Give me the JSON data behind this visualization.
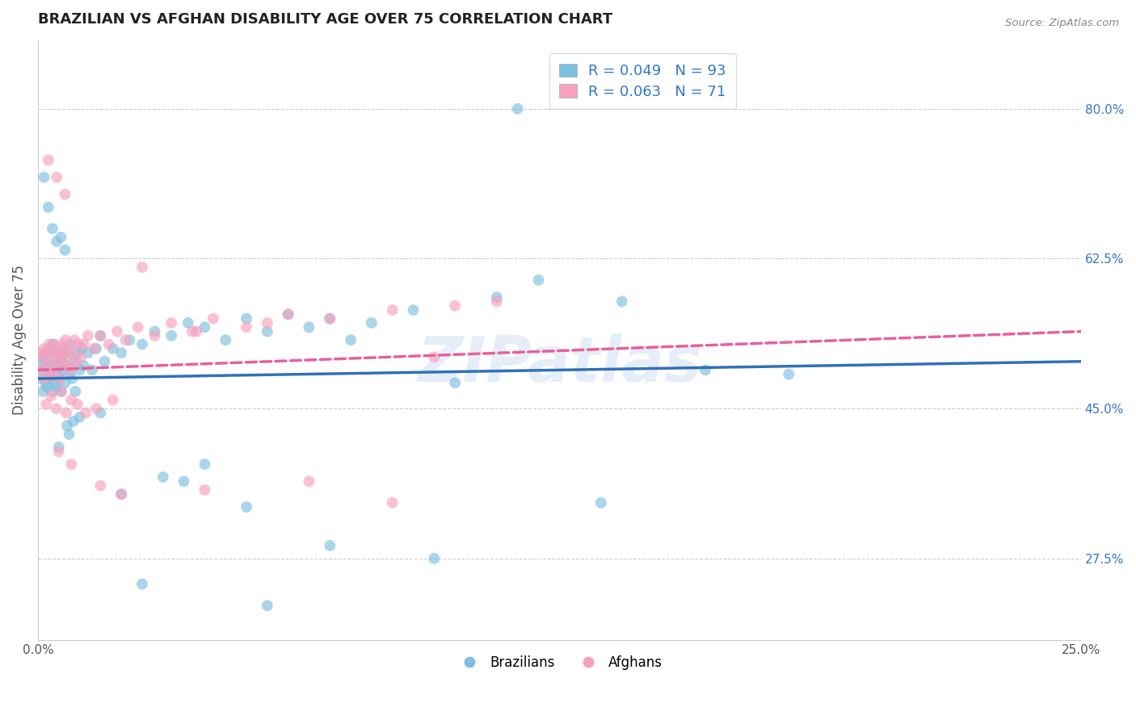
{
  "title": "BRAZILIAN VS AFGHAN DISABILITY AGE OVER 75 CORRELATION CHART",
  "source_text": "Source: ZipAtlas.com",
  "ylabel": "Disability Age Over 75",
  "xlim": [
    0.0,
    25.0
  ],
  "ylim": [
    18.0,
    88.0
  ],
  "ytick_positions": [
    27.5,
    45.0,
    62.5,
    80.0
  ],
  "ytick_labels": [
    "27.5%",
    "45.0%",
    "62.5%",
    "80.0%"
  ],
  "brazilian_R": 0.049,
  "brazilian_N": 93,
  "afghan_R": 0.063,
  "afghan_N": 71,
  "blue_color": "#7fbfdf",
  "pink_color": "#f8a0bc",
  "blue_line_color": "#3070b8",
  "pink_line_color": "#e8609a",
  "legend_text_color": "#3377cc",
  "watermark": "ZIPatlas",
  "watermark_color": "#aac8e8",
  "background_color": "#ffffff",
  "grid_color": "#cccccc",
  "title_color": "#222222",
  "brazil_x": [
    0.05,
    0.08,
    0.1,
    0.12,
    0.14,
    0.16,
    0.18,
    0.2,
    0.22,
    0.24,
    0.26,
    0.28,
    0.3,
    0.32,
    0.34,
    0.36,
    0.38,
    0.4,
    0.42,
    0.44,
    0.46,
    0.48,
    0.5,
    0.52,
    0.54,
    0.56,
    0.58,
    0.6,
    0.62,
    0.65,
    0.68,
    0.72,
    0.75,
    0.78,
    0.82,
    0.86,
    0.9,
    0.95,
    1.0,
    1.05,
    1.1,
    1.2,
    1.3,
    1.4,
    1.5,
    1.6,
    1.8,
    2.0,
    2.2,
    2.5,
    2.8,
    3.2,
    3.6,
    4.0,
    4.5,
    5.0,
    5.5,
    6.0,
    6.5,
    7.0,
    7.5,
    8.0,
    9.0,
    10.0,
    11.0,
    12.0,
    14.0,
    16.0,
    18.0,
    0.15,
    0.25,
    0.35,
    0.45,
    0.55,
    0.65,
    0.75,
    0.85,
    1.0,
    1.5,
    2.0,
    3.0,
    4.0,
    5.0,
    7.0,
    9.5,
    11.5,
    13.5,
    0.5,
    0.7,
    2.5,
    3.5,
    5.5
  ],
  "brazil_y": [
    50.0,
    48.5,
    51.0,
    47.0,
    49.5,
    51.5,
    48.0,
    50.5,
    47.5,
    49.0,
    52.0,
    48.5,
    50.0,
    51.5,
    47.0,
    49.5,
    52.5,
    48.0,
    50.0,
    51.0,
    47.5,
    49.0,
    51.5,
    48.5,
    50.5,
    47.0,
    51.0,
    49.5,
    52.0,
    48.0,
    50.0,
    51.5,
    49.0,
    52.5,
    48.5,
    50.5,
    47.0,
    51.5,
    49.5,
    52.0,
    50.0,
    51.5,
    49.5,
    52.0,
    53.5,
    50.5,
    52.0,
    51.5,
    53.0,
    52.5,
    54.0,
    53.5,
    55.0,
    54.5,
    53.0,
    55.5,
    54.0,
    56.0,
    54.5,
    55.5,
    53.0,
    55.0,
    56.5,
    48.0,
    58.0,
    60.0,
    57.5,
    49.5,
    49.0,
    72.0,
    68.5,
    66.0,
    64.5,
    65.0,
    63.5,
    42.0,
    43.5,
    44.0,
    44.5,
    35.0,
    37.0,
    38.5,
    33.5,
    29.0,
    27.5,
    80.0,
    34.0,
    40.5,
    43.0,
    24.5,
    36.5,
    22.0
  ],
  "afghan_x": [
    0.06,
    0.09,
    0.12,
    0.15,
    0.18,
    0.21,
    0.24,
    0.27,
    0.3,
    0.33,
    0.36,
    0.39,
    0.42,
    0.45,
    0.48,
    0.51,
    0.54,
    0.57,
    0.6,
    0.63,
    0.66,
    0.7,
    0.74,
    0.78,
    0.82,
    0.87,
    0.92,
    0.97,
    1.03,
    1.1,
    1.2,
    1.35,
    1.5,
    1.7,
    1.9,
    2.1,
    2.4,
    2.8,
    3.2,
    3.7,
    4.2,
    5.0,
    6.0,
    7.0,
    8.5,
    10.0,
    0.2,
    0.32,
    0.44,
    0.56,
    0.68,
    0.8,
    0.95,
    1.15,
    1.4,
    1.8,
    0.25,
    0.45,
    0.65,
    2.5,
    3.8,
    5.5,
    9.5,
    11.0,
    0.5,
    0.8,
    1.5,
    2.0,
    4.0,
    8.5,
    6.5
  ],
  "afghan_y": [
    51.5,
    49.5,
    51.0,
    52.0,
    48.5,
    51.5,
    50.0,
    52.5,
    49.0,
    51.0,
    52.5,
    49.5,
    51.5,
    50.5,
    52.0,
    48.5,
    51.0,
    52.5,
    50.0,
    51.5,
    53.0,
    50.5,
    52.0,
    49.5,
    51.5,
    53.0,
    50.5,
    52.5,
    51.0,
    52.5,
    53.5,
    52.0,
    53.5,
    52.5,
    54.0,
    53.0,
    54.5,
    53.5,
    55.0,
    54.0,
    55.5,
    54.5,
    56.0,
    55.5,
    56.5,
    57.0,
    45.5,
    46.5,
    45.0,
    47.0,
    44.5,
    46.0,
    45.5,
    44.5,
    45.0,
    46.0,
    74.0,
    72.0,
    70.0,
    61.5,
    54.0,
    55.0,
    51.0,
    57.5,
    40.0,
    38.5,
    36.0,
    35.0,
    35.5,
    34.0,
    36.5
  ],
  "trend_brazil_x0": 0.0,
  "trend_brazil_y0": 48.5,
  "trend_brazil_x1": 25.0,
  "trend_brazil_y1": 50.5,
  "trend_afghan_x0": 0.0,
  "trend_afghan_y0": 49.5,
  "trend_afghan_x1": 25.0,
  "trend_afghan_y1": 54.0
}
